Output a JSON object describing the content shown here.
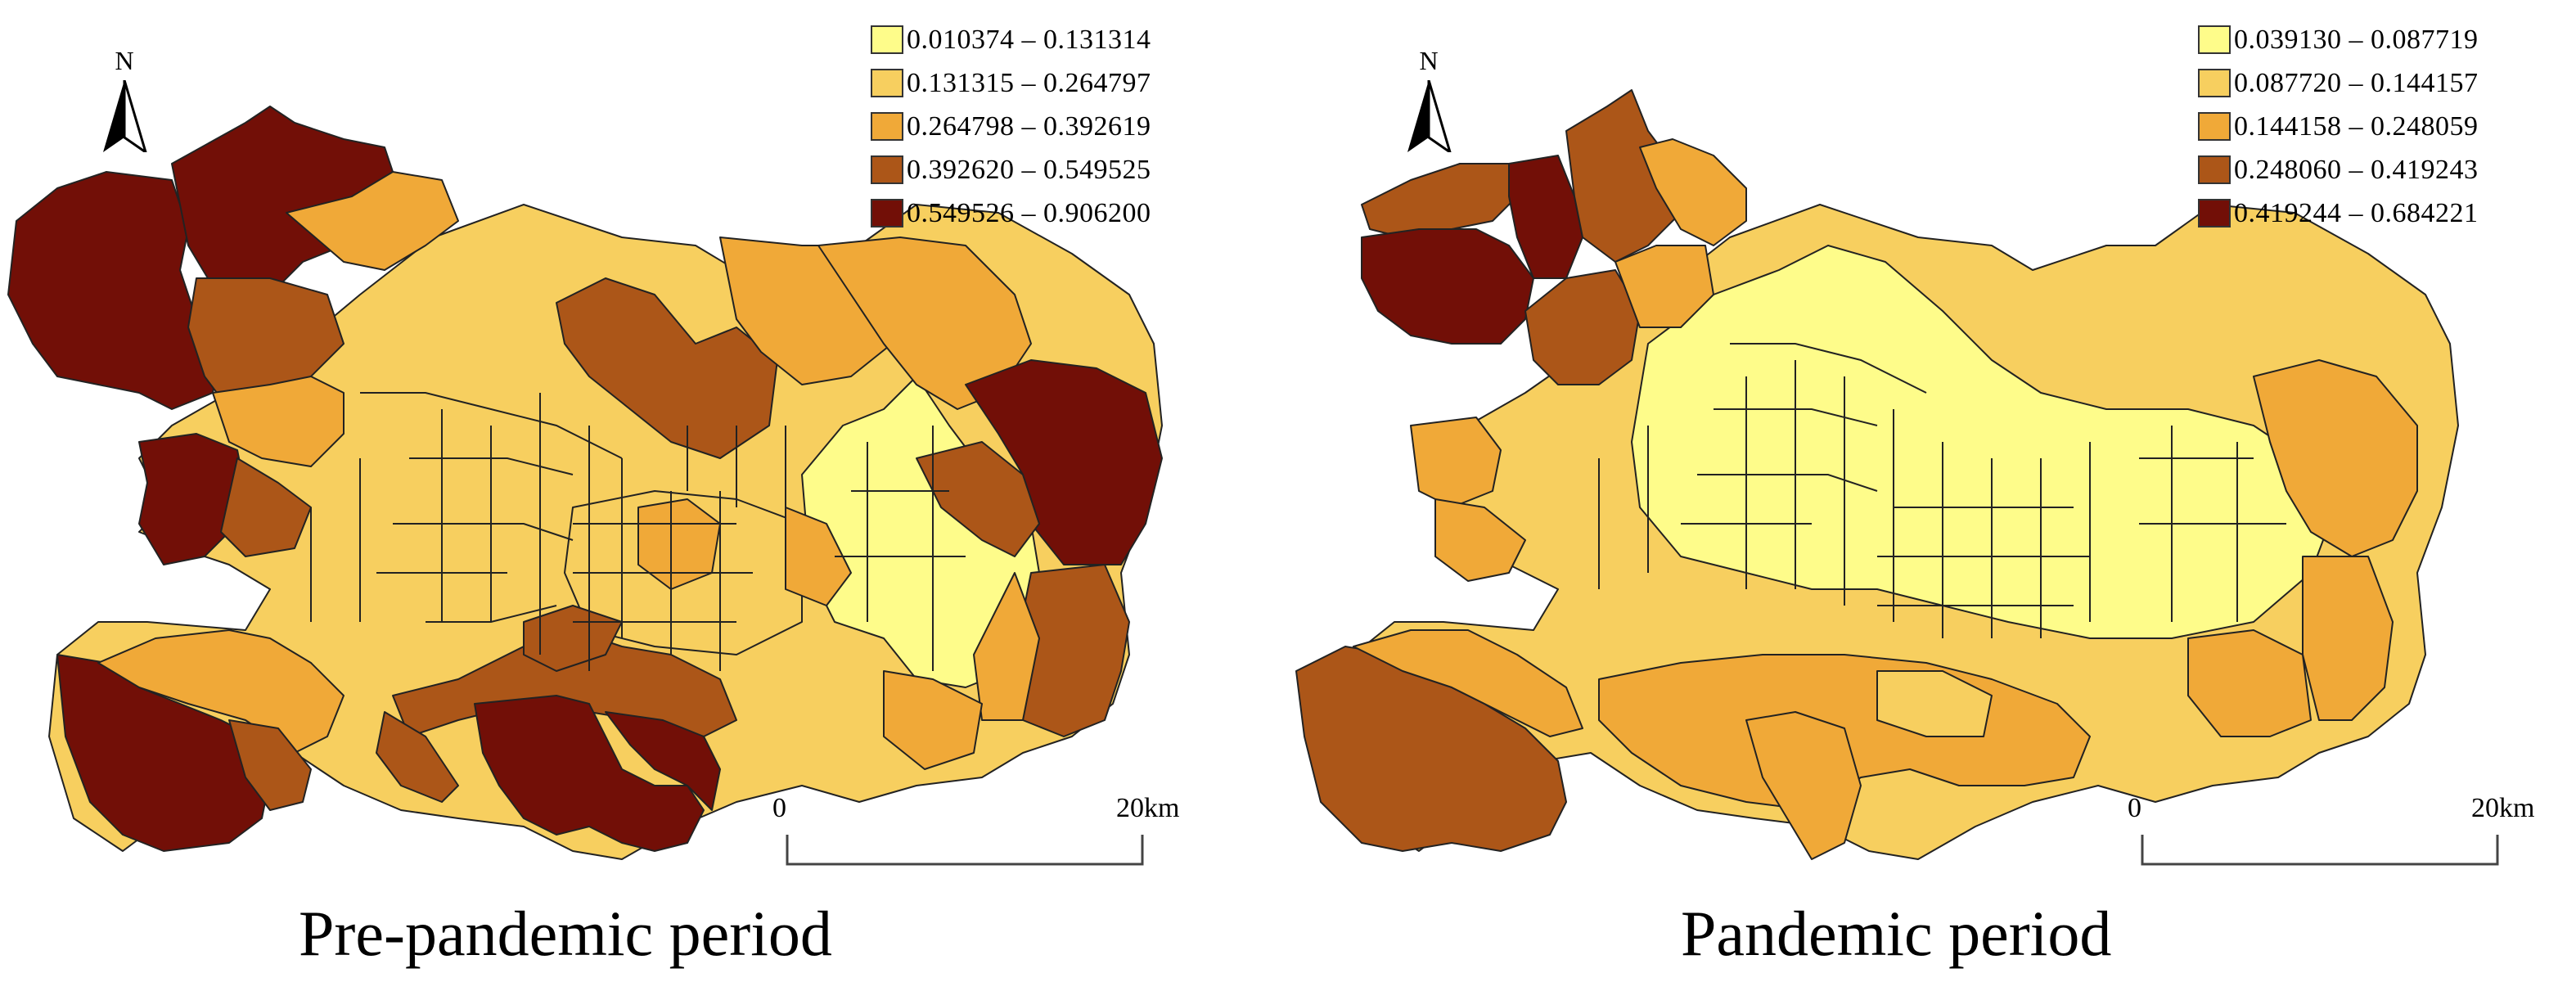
{
  "panels": [
    {
      "title": "Pre-pandemic period",
      "legend": [
        {
          "label": "0.010374 – 0.131314",
          "color": "#fefc8a"
        },
        {
          "label": "0.131315 – 0.264797",
          "color": "#f7cf5f"
        },
        {
          "label": "0.264798 – 0.392619",
          "color": "#f0a938"
        },
        {
          "label": "0.392620 – 0.549525",
          "color": "#ac5618"
        },
        {
          "label": "0.549526 – 0.906200",
          "color": "#720f07"
        }
      ],
      "north": "N",
      "scale": {
        "start": "0",
        "end": "20km"
      }
    },
    {
      "title": "Pandemic period",
      "legend": [
        {
          "label": "0.039130 – 0.087719",
          "color": "#fefc8a"
        },
        {
          "label": "0.087720 – 0.144157",
          "color": "#f7cf5f"
        },
        {
          "label": "0.144158 – 0.248059",
          "color": "#f0a938"
        },
        {
          "label": "0.248060 – 0.419243",
          "color": "#ac5618"
        },
        {
          "label": "0.419244 – 0.684221",
          "color": "#720f07"
        }
      ],
      "north": "N",
      "scale": {
        "start": "0",
        "end": "20km"
      }
    }
  ]
}
